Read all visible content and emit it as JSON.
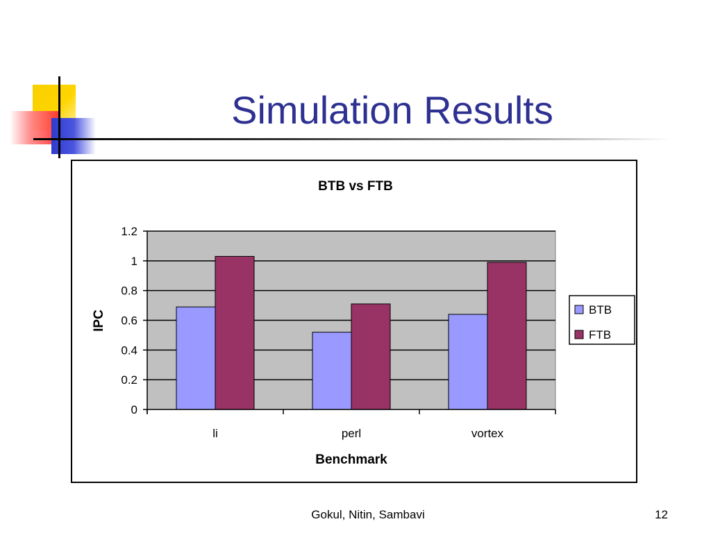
{
  "slide": {
    "title": "Simulation Results",
    "footer_authors": "Gokul, Nitin, Sambavi",
    "page_number": "12"
  },
  "chart_data": {
    "type": "bar",
    "title": "BTB vs FTB",
    "xlabel": "Benchmark",
    "ylabel": "IPC",
    "categories": [
      "li",
      "perl",
      "vortex"
    ],
    "series": [
      {
        "name": "BTB",
        "values": [
          0.69,
          0.52,
          0.64
        ],
        "color": "#9999ff"
      },
      {
        "name": "FTB",
        "values": [
          1.03,
          0.71,
          0.99
        ],
        "color": "#993366"
      }
    ],
    "ylim": [
      0,
      1.2
    ],
    "yticks": [
      "0",
      "0.2",
      "0.4",
      "0.6",
      "0.8",
      "1",
      "1.2"
    ],
    "plot_background": "#c0c0c0",
    "grid": true,
    "legend_position": "right"
  }
}
